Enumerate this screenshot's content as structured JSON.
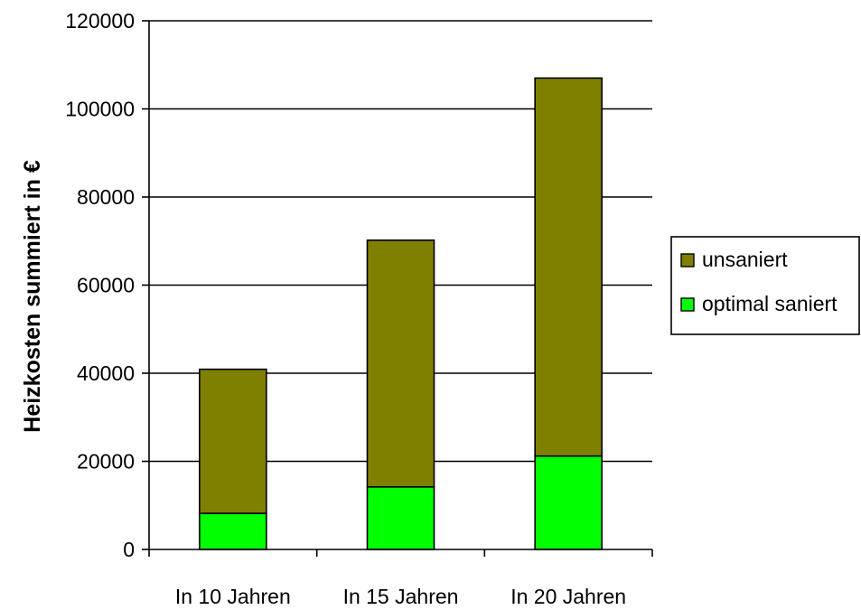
{
  "chart_data": {
    "type": "bar",
    "stacked": true,
    "title": "",
    "xlabel": "",
    "ylabel": "Heizkosten summiert in €",
    "ylim": [
      0,
      120000
    ],
    "yticks": [
      0,
      20000,
      40000,
      60000,
      80000,
      100000,
      120000
    ],
    "grid": true,
    "legend_position": "right",
    "categories": [
      "In 10 Jahren",
      "In 15 Jahren",
      "In 20 Jahren"
    ],
    "series": [
      {
        "name": "optimal saniert",
        "color": "#00FF00",
        "values": [
          8200,
          14200,
          21200
        ]
      },
      {
        "name": "unsaniert",
        "color": "#808000",
        "values": [
          32700,
          56000,
          85800
        ]
      }
    ]
  }
}
